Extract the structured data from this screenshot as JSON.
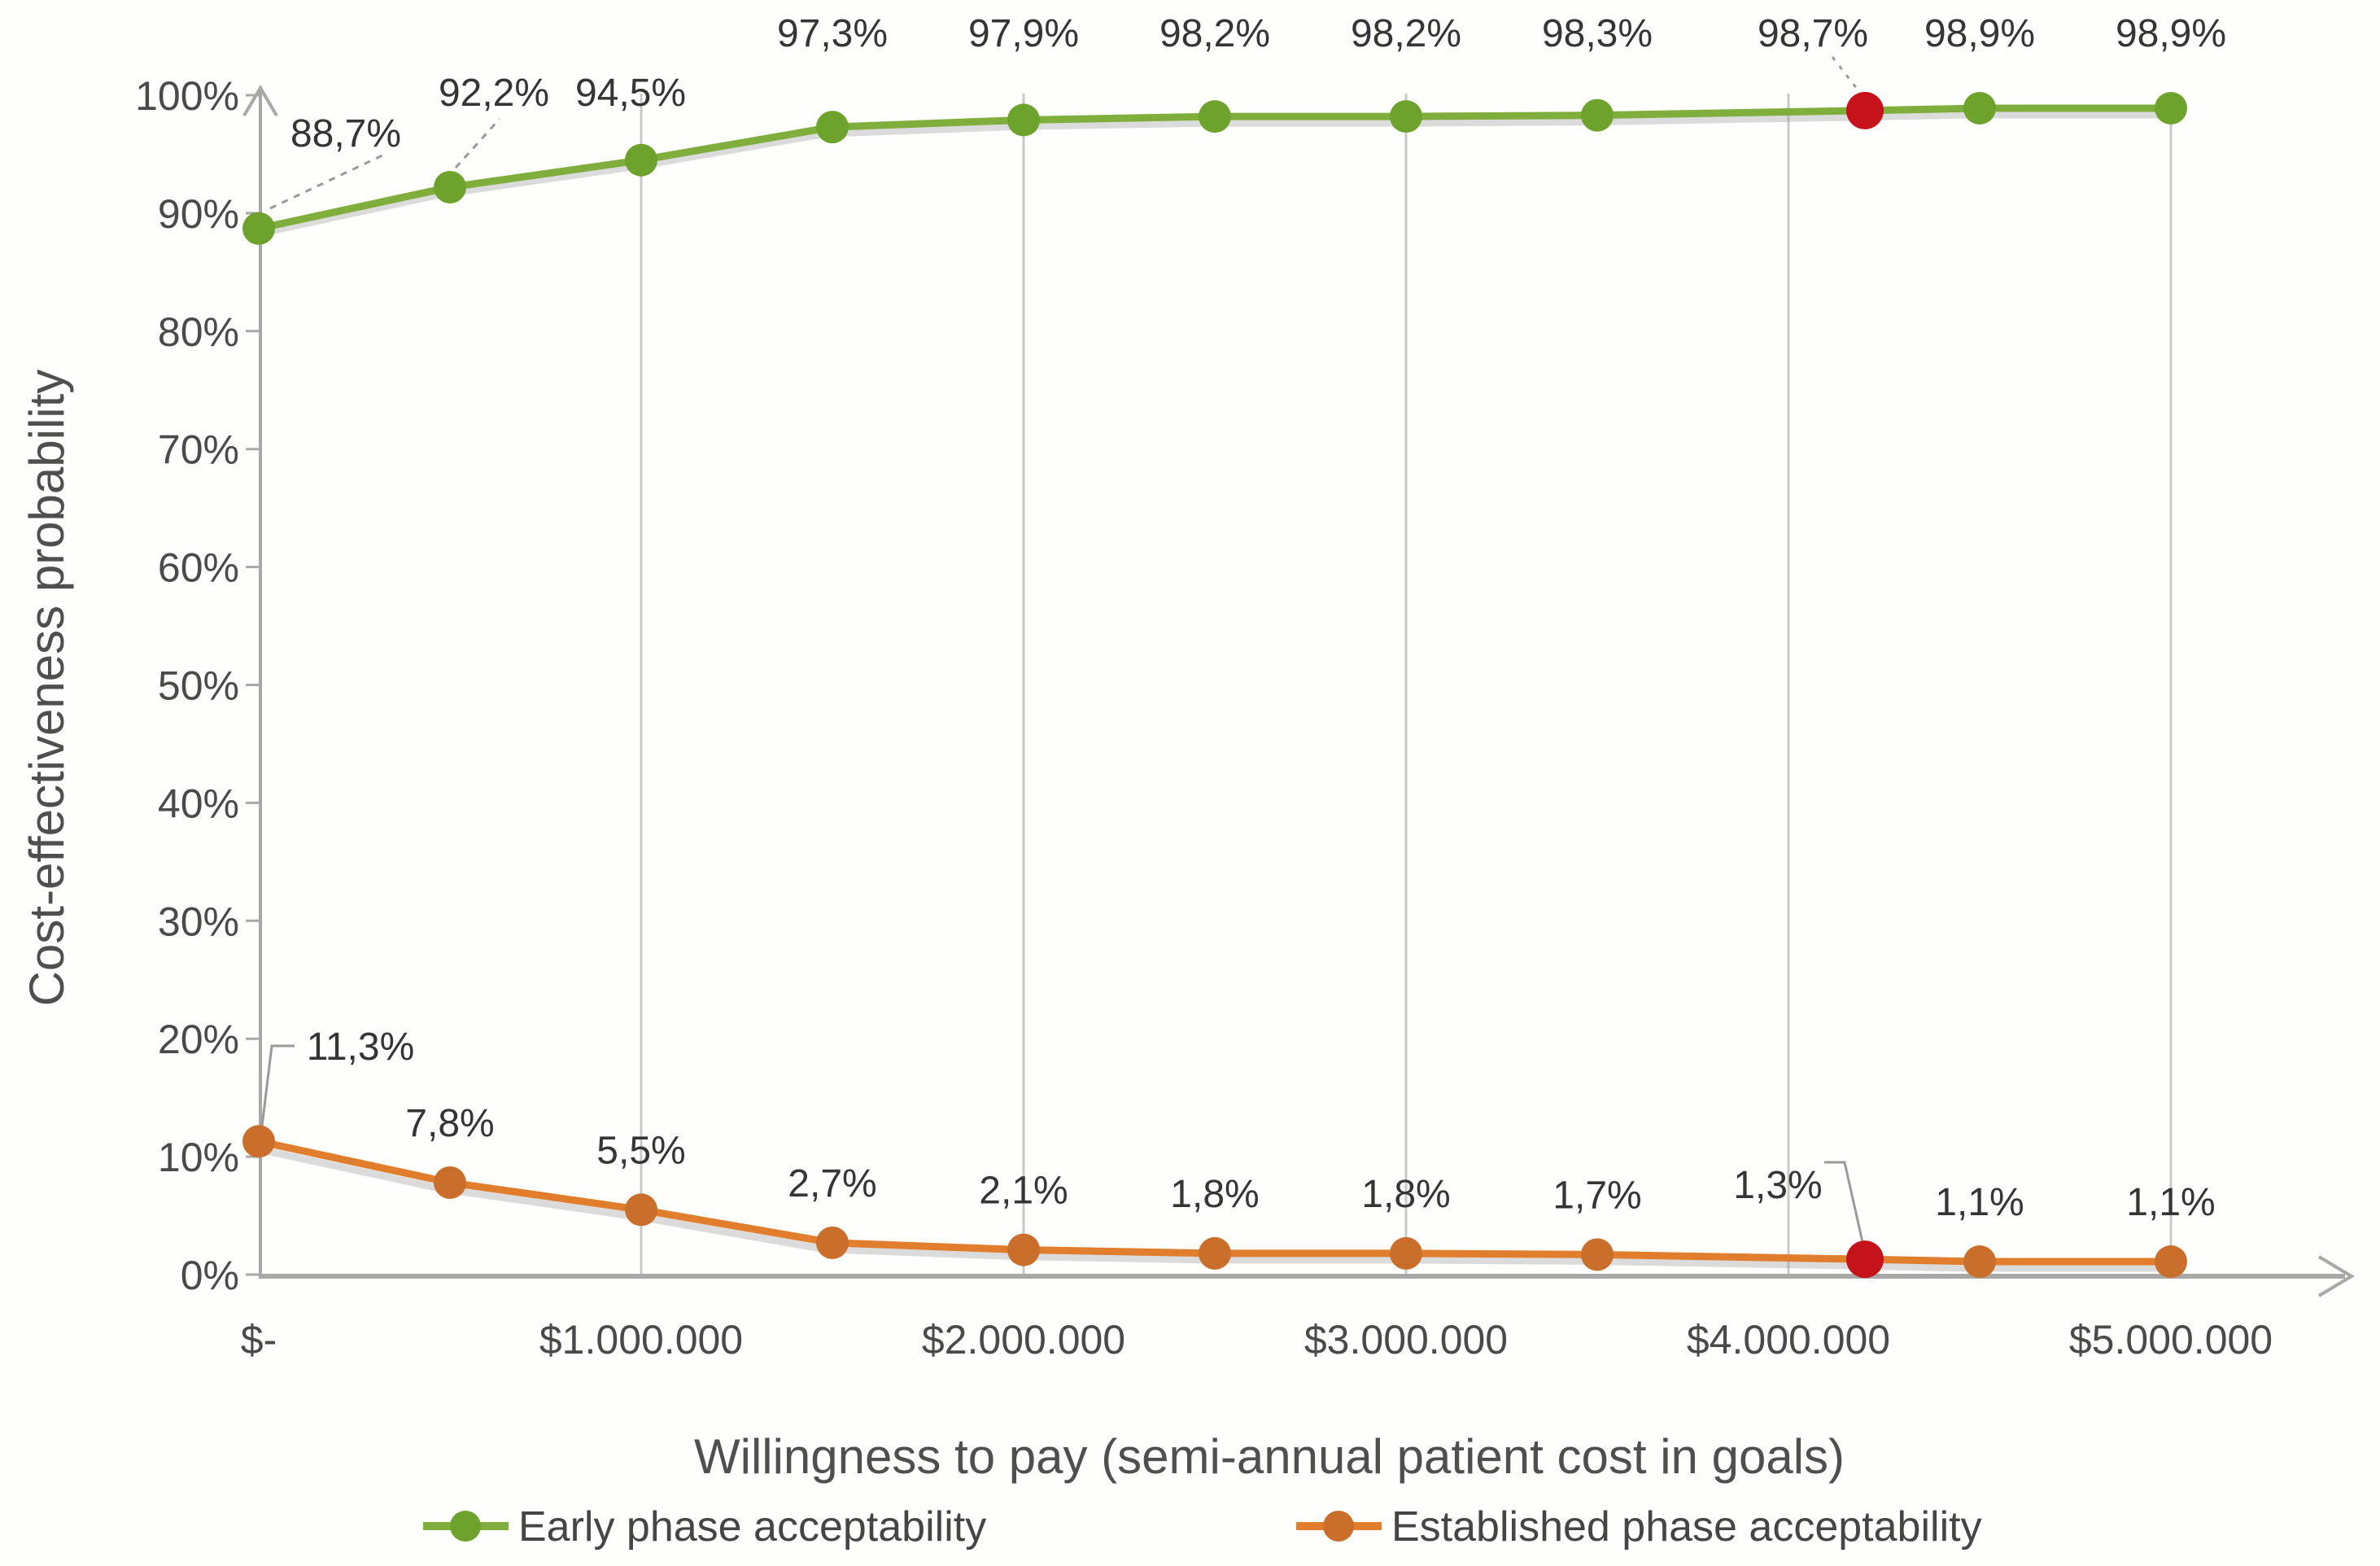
{
  "chart_data": {
    "type": "line",
    "title": "",
    "xlabel": "Willingness to pay (semi-annual patient cost in goals)",
    "ylabel": "Cost-effectiveness probability",
    "x_axis": {
      "min": 0,
      "max": 5000000,
      "tick_labels": [
        "$-",
        "$1.000.000",
        "$2.000.000",
        "$3.000.000",
        "$4.000.000",
        "$5.000.000"
      ],
      "tick_values": [
        0,
        1000000,
        2000000,
        3000000,
        4000000,
        5000000
      ],
      "gridline_values": [
        1000000,
        2000000,
        3000000,
        4000000,
        5000000
      ]
    },
    "y_axis": {
      "min": 0,
      "max": 100,
      "tick_labels": [
        "0%",
        "10%",
        "20%",
        "30%",
        "40%",
        "50%",
        "60%",
        "70%",
        "80%",
        "90%",
        "100%"
      ],
      "tick_values": [
        0,
        10,
        20,
        30,
        40,
        50,
        60,
        70,
        80,
        90,
        100
      ]
    },
    "grid": "vertical-only",
    "legend_position": "bottom",
    "highlight_color": "#C5121B",
    "series": [
      {
        "name": "Early phase acceptability",
        "line_color": "#7FAE3C",
        "marker_color": "#6DA22D",
        "x": [
          0,
          500000,
          1000000,
          1500000,
          2000000,
          2500000,
          3000000,
          3500000,
          4200000,
          4500000,
          5000000
        ],
        "values": [
          88.7,
          92.2,
          94.5,
          97.3,
          97.9,
          98.2,
          98.2,
          98.3,
          98.7,
          98.9,
          98.9
        ],
        "labels": [
          "88,7%",
          "92,2%",
          "94,5%",
          "97,3%",
          "97,9%",
          "98,2%",
          "98,2%",
          "98,3%",
          "98,7%",
          "98,9%",
          "98,9%"
        ],
        "highlight_index": 8
      },
      {
        "name": "Established phase acceptability",
        "line_color": "#E07E2E",
        "marker_color": "#C96F2B",
        "x": [
          0,
          500000,
          1000000,
          1500000,
          2000000,
          2500000,
          3000000,
          3500000,
          4200000,
          4500000,
          5000000
        ],
        "values": [
          11.3,
          7.8,
          5.5,
          2.7,
          2.1,
          1.8,
          1.8,
          1.7,
          1.3,
          1.1,
          1.1
        ],
        "labels": [
          "11,3%",
          "7,8%",
          "5,5%",
          "2,7%",
          "2,1%",
          "1,8%",
          "1,8%",
          "1,7%",
          "1,3%",
          "1,1%",
          "1,1%"
        ],
        "highlight_index": 8
      }
    ],
    "style": {
      "gridline_color": "#c9c9c9",
      "axis_color": "#a8a8a8",
      "leader_color": "#9a9a9a",
      "shadow_color": "#9a9a9a"
    }
  }
}
